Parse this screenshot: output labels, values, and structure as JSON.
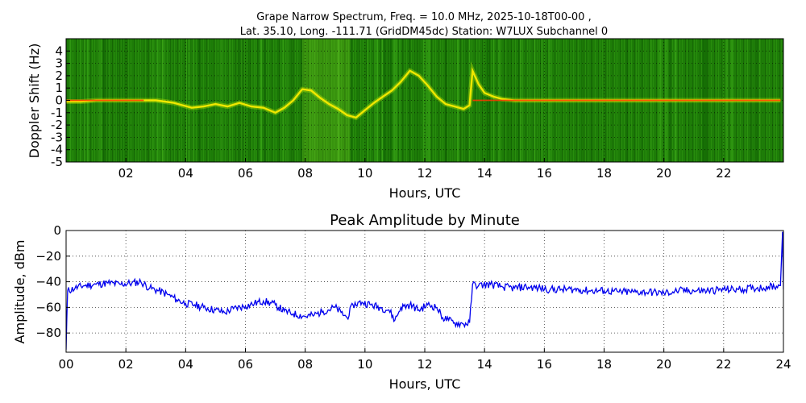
{
  "chart_data": [
    {
      "type": "heatmap",
      "title_line1": "Grape Narrow Spectrum, Freq. = 10.0 MHz, 2025-10-18T00-00 ,",
      "title_line2": "Lat.  35.10, Long. -111.71 (GridDM45dc) Station: W7LUX Subchannel 0",
      "xlabel": "Hours, UTC",
      "ylabel": "Doppler Shift (Hz)",
      "xlim": [
        0,
        24
      ],
      "ylim": [
        -5,
        5
      ],
      "xticks": [
        {
          "value": 2,
          "label": "02"
        },
        {
          "value": 4,
          "label": "04"
        },
        {
          "value": 6,
          "label": "06"
        },
        {
          "value": 8,
          "label": "08"
        },
        {
          "value": 10,
          "label": "10"
        },
        {
          "value": 12,
          "label": "12"
        },
        {
          "value": 14,
          "label": "14"
        },
        {
          "value": 16,
          "label": "16"
        },
        {
          "value": 18,
          "label": "18"
        },
        {
          "value": 20,
          "label": "20"
        },
        {
          "value": 22,
          "label": "22"
        }
      ],
      "yticks": [
        {
          "value": 4,
          "label": "4"
        },
        {
          "value": 3,
          "label": "3"
        },
        {
          "value": 2,
          "label": "2"
        },
        {
          "value": 1,
          "label": "1"
        },
        {
          "value": 0,
          "label": "0"
        },
        {
          "value": -1,
          "label": "-1"
        },
        {
          "value": -2,
          "label": "-2"
        },
        {
          "value": -3,
          "label": "-3"
        },
        {
          "value": -4,
          "label": "-4"
        },
        {
          "value": -5,
          "label": "-5"
        }
      ],
      "grid": true,
      "colors": {
        "background": "#1e7d08",
        "trace_hot": "#ff3a00",
        "trace_mid": "#ffee00",
        "trace_low": "#c8e800"
      },
      "trace": {
        "x": [
          0.0,
          0.5,
          1.0,
          1.5,
          2.0,
          2.5,
          3.0,
          3.3,
          3.6,
          3.9,
          4.2,
          4.6,
          5.0,
          5.4,
          5.8,
          6.2,
          6.6,
          7.0,
          7.3,
          7.6,
          7.9,
          8.2,
          8.5,
          8.8,
          9.1,
          9.4,
          9.7,
          10.0,
          10.3,
          10.6,
          10.9,
          11.2,
          11.5,
          11.8,
          12.1,
          12.4,
          12.7,
          13.0,
          13.3,
          13.5,
          13.6,
          13.8,
          14.0,
          14.3,
          14.6,
          15.0,
          15.5,
          16.0,
          17.0,
          18.0,
          19.0,
          20.0,
          21.0,
          22.0,
          23.0,
          23.9
        ],
        "y": [
          -0.1,
          -0.1,
          0.0,
          0.0,
          0.0,
          0.0,
          0.0,
          -0.1,
          -0.2,
          -0.4,
          -0.6,
          -0.5,
          -0.3,
          -0.5,
          -0.2,
          -0.5,
          -0.6,
          -1.0,
          -0.6,
          0.0,
          0.9,
          0.8,
          0.2,
          -0.3,
          -0.7,
          -1.2,
          -1.4,
          -0.8,
          -0.2,
          0.3,
          0.8,
          1.5,
          2.4,
          2.0,
          1.2,
          0.3,
          -0.3,
          -0.5,
          -0.7,
          -0.4,
          2.4,
          1.3,
          0.6,
          0.3,
          0.1,
          0.0,
          0.0,
          0.0,
          0.0,
          0.0,
          0.0,
          0.0,
          0.0,
          0.0,
          0.0,
          0.0
        ]
      }
    },
    {
      "type": "line",
      "title": "Peak Amplitude by Minute",
      "xlabel": "Hours, UTC",
      "ylabel": "Amplitude, dBm",
      "xlim": [
        0,
        24
      ],
      "ylim": [
        -95,
        0
      ],
      "xticks": [
        {
          "value": 0,
          "label": "00"
        },
        {
          "value": 2,
          "label": "02"
        },
        {
          "value": 4,
          "label": "04"
        },
        {
          "value": 6,
          "label": "06"
        },
        {
          "value": 8,
          "label": "08"
        },
        {
          "value": 10,
          "label": "10"
        },
        {
          "value": 12,
          "label": "12"
        },
        {
          "value": 14,
          "label": "14"
        },
        {
          "value": 16,
          "label": "16"
        },
        {
          "value": 18,
          "label": "18"
        },
        {
          "value": 20,
          "label": "20"
        },
        {
          "value": 22,
          "label": "22"
        },
        {
          "value": 24,
          "label": "24"
        }
      ],
      "yticks": [
        {
          "value": 0,
          "label": "0"
        },
        {
          "value": -20,
          "label": "−20"
        },
        {
          "value": -40,
          "label": "−40"
        },
        {
          "value": -60,
          "label": "−60"
        },
        {
          "value": -80,
          "label": "−80"
        }
      ],
      "grid": true,
      "line_color": "#0000ee",
      "series": [
        {
          "x": [
            0.0,
            0.05,
            0.3,
            0.6,
            1.0,
            1.4,
            1.8,
            2.2,
            2.5,
            2.8,
            3.1,
            3.4,
            3.7,
            4.0,
            4.3,
            4.6,
            5.0,
            5.3,
            5.6,
            6.0,
            6.3,
            6.6,
            7.0,
            7.3,
            7.6,
            8.0,
            8.3,
            8.6,
            9.0,
            9.2,
            9.4,
            9.6,
            9.9,
            10.2,
            10.5,
            10.8,
            11.0,
            11.2,
            11.5,
            11.8,
            12.1,
            12.4,
            12.6,
            12.8,
            13.0,
            13.3,
            13.5,
            13.6,
            13.8,
            14.2,
            14.6,
            15.0,
            15.4,
            15.8,
            16.2,
            16.6,
            17.0,
            17.5,
            18.0,
            18.5,
            19.0,
            19.5,
            20.0,
            20.5,
            21.0,
            21.5,
            22.0,
            22.5,
            23.0,
            23.5,
            23.9,
            23.97,
            24.0
          ],
          "y": [
            -93,
            -47,
            -45,
            -43,
            -42,
            -41,
            -42,
            -41,
            -40,
            -45,
            -47,
            -50,
            -54,
            -57,
            -58,
            -60,
            -62,
            -64,
            -61,
            -59,
            -57,
            -55,
            -58,
            -63,
            -65,
            -67,
            -66,
            -63,
            -60,
            -64,
            -68,
            -58,
            -56,
            -58,
            -60,
            -62,
            -70,
            -60,
            -58,
            -62,
            -58,
            -60,
            -68,
            -70,
            -72,
            -73,
            -72,
            -42,
            -43,
            -42,
            -44,
            -45,
            -44,
            -45,
            -46,
            -46,
            -46,
            -47,
            -47,
            -48,
            -48,
            -48,
            -49,
            -47,
            -47,
            -47,
            -46,
            -46,
            -45,
            -44,
            -43,
            -1,
            -46
          ]
        }
      ]
    }
  ]
}
